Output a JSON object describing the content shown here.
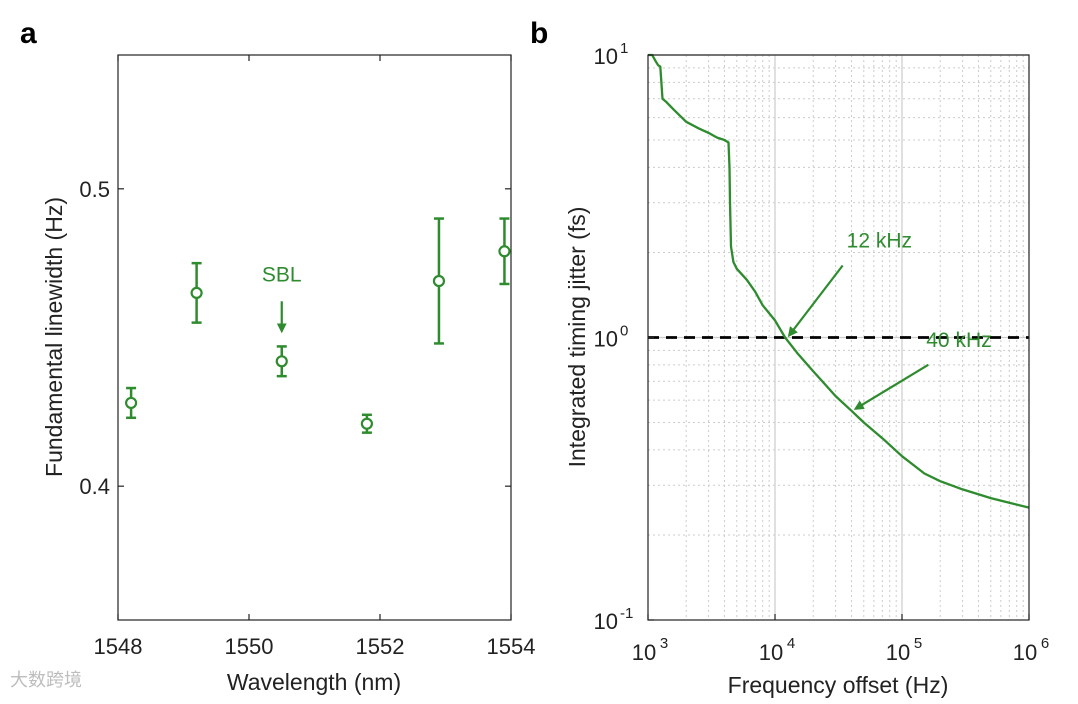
{
  "colors": {
    "series": "#2e8b2e",
    "axis": "#222222",
    "grid": "#cccccc",
    "threshold": "#000000"
  },
  "watermark": "大数跨境",
  "chart_data": [
    {
      "panel": "a",
      "type": "scatter",
      "title": "",
      "xlabel": "Wavelength (nm)",
      "ylabel": "Fundamental linewidth (Hz)",
      "xlim": [
        1548,
        1554
      ],
      "ylim": [
        0.355,
        0.545
      ],
      "xticks": [
        1548,
        1550,
        1552,
        1554
      ],
      "xtick_labels": [
        "1548",
        "1550",
        "1552",
        "1554"
      ],
      "yticks": [
        0.4,
        0.5
      ],
      "ytick_labels": [
        "0.4",
        "0.5"
      ],
      "grid": false,
      "points": [
        {
          "x": 1548.2,
          "y": 0.428,
          "err": 0.005
        },
        {
          "x": 1549.2,
          "y": 0.465,
          "err": 0.01
        },
        {
          "x": 1550.5,
          "y": 0.442,
          "err": 0.005
        },
        {
          "x": 1551.8,
          "y": 0.421,
          "err": 0.003
        },
        {
          "x": 1552.9,
          "y": 0.469,
          "err": 0.021
        },
        {
          "x": 1553.9,
          "y": 0.479,
          "err": 0.011
        }
      ],
      "annotations": [
        {
          "text": "SBL",
          "x": 1550.5,
          "y": 0.442
        }
      ]
    },
    {
      "panel": "b",
      "type": "line",
      "title": "",
      "xlabel": "Frequency offset (Hz)",
      "ylabel": "Integrated timing jitter (fs)",
      "xscale": "log",
      "yscale": "log",
      "xlim": [
        1000,
        1000000
      ],
      "ylim": [
        0.1,
        10
      ],
      "xtick_labels": [
        {
          "base": "10",
          "exp": "3"
        },
        {
          "base": "10",
          "exp": "4"
        },
        {
          "base": "10",
          "exp": "5"
        },
        {
          "base": "10",
          "exp": "6"
        }
      ],
      "ytick_labels": [
        {
          "base": "10",
          "exp": "-1"
        },
        {
          "base": "10",
          "exp": "0"
        },
        {
          "base": "10",
          "exp": "1"
        }
      ],
      "grid": true,
      "threshold_y": 1,
      "series": [
        {
          "name": "Integrated timing jitter",
          "x": [
            1000,
            1080,
            1150,
            1200,
            1250,
            1300,
            1400,
            1600,
            2000,
            2500,
            3000,
            3500,
            4000,
            4300,
            4380,
            4420,
            4500,
            4700,
            5000,
            6000,
            7000,
            8000,
            10000,
            12000,
            15000,
            20000,
            30000,
            40000,
            50000,
            70000,
            100000,
            150000,
            200000,
            300000,
            500000,
            700000,
            1000000
          ],
          "y": [
            10,
            10,
            9.5,
            9.2,
            9.1,
            7.0,
            6.8,
            6.4,
            5.8,
            5.5,
            5.3,
            5.1,
            5.0,
            4.9,
            4.0,
            3.0,
            2.1,
            1.85,
            1.75,
            1.6,
            1.45,
            1.3,
            1.15,
            1.0,
            0.88,
            0.76,
            0.62,
            0.55,
            0.5,
            0.44,
            0.38,
            0.33,
            0.31,
            0.29,
            0.27,
            0.26,
            0.25
          ]
        }
      ],
      "annotations": [
        {
          "text": "12 kHz",
          "x": 12000,
          "y": 1.0
        },
        {
          "text": "40 kHz",
          "x": 40000,
          "y": 0.55
        }
      ]
    }
  ]
}
